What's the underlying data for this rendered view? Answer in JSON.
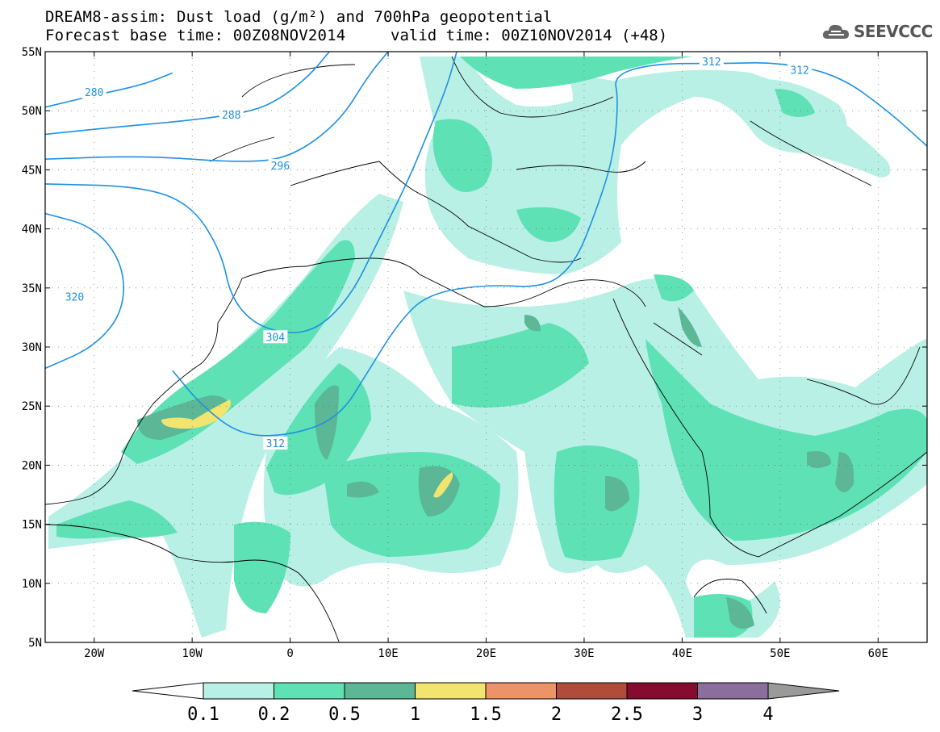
{
  "title": {
    "line1": "DREAM8-assim: Dust load (g/m²) and 700hPa geopotential",
    "base_time": "Forecast base time: 00Z08NOV2014",
    "valid_time": "valid time: 00Z10NOV2014 (+48)"
  },
  "logo": {
    "text": "SEEVCCC",
    "icon": "cloud-icon"
  },
  "map": {
    "lon_range": [
      -25,
      65
    ],
    "lat_range": [
      5,
      55
    ],
    "lat_ticks": [
      {
        "value": 55,
        "label": "55N"
      },
      {
        "value": 50,
        "label": "50N"
      },
      {
        "value": 45,
        "label": "45N"
      },
      {
        "value": 40,
        "label": "40N"
      },
      {
        "value": 35,
        "label": "35N"
      },
      {
        "value": 30,
        "label": "30N"
      },
      {
        "value": 25,
        "label": "25N"
      },
      {
        "value": 20,
        "label": "20N"
      },
      {
        "value": 15,
        "label": "15N"
      },
      {
        "value": 10,
        "label": "10N"
      },
      {
        "value": 5,
        "label": "5N"
      }
    ],
    "lon_ticks": [
      {
        "value": -20,
        "label": "20W"
      },
      {
        "value": -10,
        "label": "10W"
      },
      {
        "value": 0,
        "label": "0"
      },
      {
        "value": 10,
        "label": "10E"
      },
      {
        "value": 20,
        "label": "20E"
      },
      {
        "value": 30,
        "label": "30E"
      },
      {
        "value": 40,
        "label": "40E"
      },
      {
        "value": 50,
        "label": "50E"
      },
      {
        "value": 60,
        "label": "60E"
      }
    ],
    "contour_color": "#1e90e0",
    "contours": [
      {
        "label": "280",
        "points": [
          [
            -25,
            50.3
          ],
          [
            -20,
            51.3
          ],
          [
            -15,
            52.2
          ],
          [
            -12,
            53.2
          ]
        ],
        "label_at": [
          -20,
          51.5
        ]
      },
      {
        "label": "288",
        "points": [
          [
            -25,
            48
          ],
          [
            -18,
            48.6
          ],
          [
            -10,
            49.2
          ],
          [
            -4,
            49.9
          ],
          [
            -1,
            51
          ],
          [
            2,
            53
          ],
          [
            4,
            55
          ]
        ],
        "label_at": [
          -6,
          49.6
        ]
      },
      {
        "label": "296",
        "points": [
          [
            -25,
            45.9
          ],
          [
            -15,
            46.2
          ],
          [
            -5,
            45.6
          ],
          [
            0,
            46
          ],
          [
            5,
            49
          ],
          [
            8,
            53
          ],
          [
            10,
            55
          ]
        ],
        "label_at": [
          -1,
          45.3
        ]
      },
      {
        "label": "304",
        "points": [
          [
            -25,
            43.8
          ],
          [
            -15,
            43.6
          ],
          [
            -10,
            42
          ],
          [
            -7,
            38
          ],
          [
            -6,
            34
          ],
          [
            -3,
            31.5
          ],
          [
            2,
            31
          ],
          [
            6,
            34
          ],
          [
            9,
            39
          ],
          [
            12,
            44
          ],
          [
            14,
            48
          ],
          [
            16,
            52
          ],
          [
            17,
            55
          ]
        ],
        "label_at": [
          -1.5,
          30.8
        ]
      },
      {
        "label": "312",
        "points": [
          [
            -12,
            28
          ],
          [
            -9,
            25
          ],
          [
            -5,
            22.5
          ],
          [
            0,
            22.5
          ],
          [
            5,
            24
          ],
          [
            8,
            28
          ],
          [
            11,
            32
          ],
          [
            14,
            34.5
          ],
          [
            20,
            35.3
          ],
          [
            26,
            35
          ],
          [
            29,
            37
          ],
          [
            31,
            41
          ],
          [
            33,
            46
          ],
          [
            33.5,
            51
          ],
          [
            33,
            53
          ],
          [
            37,
            54
          ],
          [
            44,
            54
          ],
          [
            50,
            54.1
          ],
          [
            56,
            53
          ],
          [
            61,
            50
          ],
          [
            65,
            47
          ]
        ],
        "label_at": [
          -1.5,
          21.8
        ]
      },
      {
        "label": "312",
        "points": [],
        "label_at": [
          43,
          54.1
        ]
      },
      {
        "label": "312",
        "points": [],
        "label_at": [
          52,
          53.4
        ]
      },
      {
        "label": "320",
        "points": [
          [
            -25,
            41.3
          ],
          [
            -20,
            40.2
          ],
          [
            -17,
            37
          ],
          [
            -17,
            33
          ],
          [
            -20,
            30
          ],
          [
            -25,
            28.2
          ]
        ],
        "label_at": [
          -22,
          34.2
        ]
      }
    ],
    "dust_colors": [
      "#b9f0e5",
      "#5fe1b6",
      "#5bb795",
      "#f1e56f",
      "#ec9468",
      "#b14c3d",
      "#860b2e",
      "#8b6e9c"
    ]
  },
  "colorbar": {
    "labels": [
      "0.1",
      "0.2",
      "0.5",
      "1",
      "1.5",
      "2",
      "2.5",
      "3",
      "4"
    ],
    "colors": [
      "#b9f0e5",
      "#5fe1b6",
      "#5bb795",
      "#f1e56f",
      "#ec9468",
      "#b14c3d",
      "#860b2e",
      "#8b6e9c"
    ],
    "under_color": "#ffffff",
    "over_color": "#9a9a9a"
  }
}
